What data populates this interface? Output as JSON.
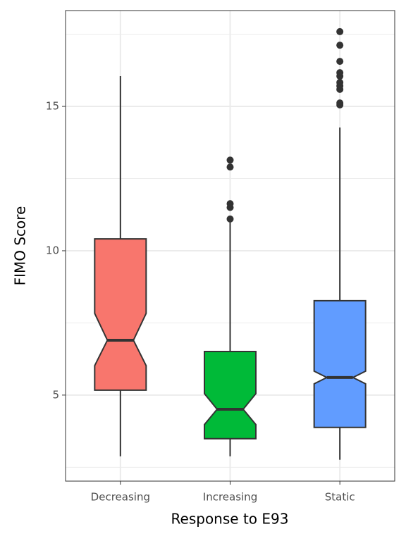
{
  "chart_data": {
    "type": "boxplot",
    "x_label": "Response to E93",
    "y_label": "FIMO Score",
    "categories": [
      "Decreasing",
      "Increasing",
      "Static"
    ],
    "boxes": [
      {
        "color": "#f8766d",
        "low": 2.88,
        "q1": 5.17,
        "notch_low": 6.02,
        "median": 6.9,
        "notch_high": 7.83,
        "q3": 10.41,
        "high": 16.05,
        "outliers": []
      },
      {
        "color": "#00ba38",
        "low": 2.88,
        "q1": 3.49,
        "notch_low": 3.98,
        "median": 4.51,
        "notch_high": 5.05,
        "q3": 6.51,
        "high": 11.0,
        "outliers": [
          11.1,
          11.5,
          11.63,
          12.9,
          13.14
        ]
      },
      {
        "color": "#619cff",
        "low": 2.76,
        "q1": 3.88,
        "notch_low": 5.39,
        "median": 5.61,
        "notch_high": 5.83,
        "q3": 8.27,
        "high": 14.27,
        "outliers": [
          15.05,
          15.12,
          15.59,
          15.71,
          15.83,
          16.05,
          16.17,
          16.56,
          17.12,
          17.59
        ]
      }
    ],
    "ylim": [
      2.02,
      18.32
    ],
    "yticks": [
      5,
      10,
      15
    ],
    "minor_yticks": [
      2.5,
      7.5,
      12.5,
      17.5
    ],
    "grid": true
  }
}
